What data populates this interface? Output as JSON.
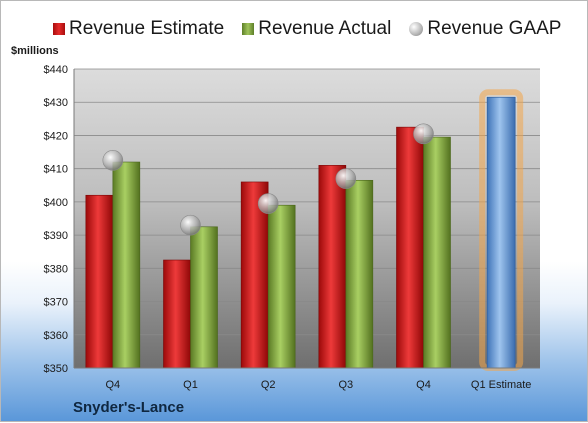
{
  "legend": {
    "estimate": "Revenue Estimate",
    "actual": "Revenue Actual",
    "gaap": "Revenue GAAP"
  },
  "units": "$millions",
  "company": "Snyder's-Lance",
  "colors": {
    "estimate": "#d42020",
    "actual": "#8db54b",
    "gaap": "#aaaaaa",
    "projected": "#6fa0d8",
    "projected_glow": "#f3a64a"
  },
  "chart_data": {
    "type": "bar",
    "categories": [
      "Q4",
      "Q1",
      "Q2",
      "Q3",
      "Q4",
      "Q1 Estimate"
    ],
    "series": [
      {
        "name": "Revenue Estimate",
        "values": [
          402,
          382.5,
          406,
          411,
          422.5,
          null
        ]
      },
      {
        "name": "Revenue Actual",
        "values": [
          412,
          392.5,
          399,
          406.5,
          419.5,
          null
        ]
      },
      {
        "name": "Revenue GAAP",
        "values": [
          412.5,
          393,
          399.5,
          407,
          420.5,
          null
        ]
      }
    ],
    "projection": {
      "category": "Q1 Estimate",
      "value": 431.5
    },
    "ylim": [
      350,
      440
    ],
    "yticks": [
      "$350",
      "$360",
      "$370",
      "$380",
      "$390",
      "$400",
      "$410",
      "$420",
      "$430",
      "$440"
    ],
    "ylabel": "$millions",
    "grid": true,
    "legend_position": "top"
  }
}
